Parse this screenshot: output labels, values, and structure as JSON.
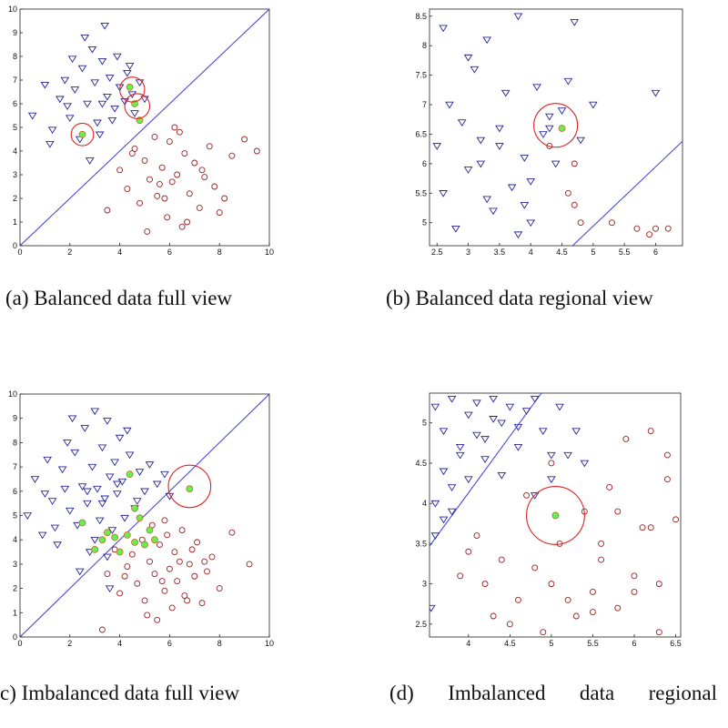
{
  "chart_data": [
    {
      "type": "scatter",
      "caption": "(a) Balanced data full view",
      "xlim": [
        0,
        10
      ],
      "ylim": [
        0,
        10
      ],
      "xticks": [
        0,
        2,
        4,
        6,
        8,
        10
      ],
      "yticks": [
        0,
        1,
        2,
        3,
        4,
        5,
        6,
        7,
        8,
        9,
        10
      ],
      "series": [
        {
          "marker": "line",
          "color": "#3a3adc",
          "x": [
            0,
            10
          ],
          "y": [
            0,
            10
          ]
        },
        {
          "marker": "triangle",
          "color": "#26269a",
          "x": [
            0.5,
            1.0,
            1.3,
            1.6,
            1.8,
            2.0,
            2.2,
            2.4,
            2.5,
            2.7,
            2.9,
            3.0,
            3.1,
            3.3,
            3.4,
            3.5,
            3.6,
            3.8,
            3.9,
            4.0,
            4.2,
            4.3,
            4.5,
            4.6,
            4.8,
            5.0,
            1.2,
            2.1,
            2.8,
            3.2,
            3.7,
            2.6,
            1.9,
            3.3,
            4.4
          ],
          "y": [
            5.5,
            6.8,
            4.9,
            6.2,
            7.0,
            5.4,
            6.6,
            4.5,
            7.5,
            6.0,
            8.3,
            6.9,
            5.2,
            7.8,
            9.3,
            6.3,
            7.1,
            5.8,
            8.0,
            6.7,
            6.1,
            7.3,
            6.4,
            5.6,
            6.9,
            6.2,
            4.3,
            7.9,
            3.6,
            4.7,
            5.3,
            8.8,
            5.9,
            6.0,
            7.6
          ]
        },
        {
          "marker": "circle",
          "color": "#9c1f1f",
          "x": [
            3.5,
            4.0,
            4.3,
            4.6,
            4.8,
            5.0,
            5.2,
            5.4,
            5.5,
            5.7,
            5.9,
            6.0,
            6.1,
            6.3,
            6.5,
            6.6,
            6.8,
            7.0,
            7.2,
            7.4,
            7.6,
            7.8,
            8.0,
            8.5,
            9.0,
            9.5,
            5.1,
            5.8,
            6.2,
            6.7,
            4.5,
            7.3,
            6.4,
            5.6,
            8.2
          ],
          "y": [
            1.5,
            3.2,
            2.4,
            4.1,
            1.8,
            3.6,
            2.8,
            4.6,
            2.1,
            3.3,
            1.2,
            4.4,
            2.7,
            3.0,
            0.8,
            3.9,
            2.2,
            3.5,
            1.6,
            2.9,
            4.2,
            2.5,
            1.4,
            3.8,
            4.5,
            4.0,
            0.6,
            2.0,
            5.0,
            1.0,
            3.9,
            3.2,
            4.8,
            2.6,
            2.0
          ]
        },
        {
          "marker": "dot",
          "color": "#66ee55",
          "x": [
            4.4,
            4.6,
            4.8,
            2.5
          ],
          "y": [
            6.7,
            6.0,
            5.3,
            4.7
          ]
        }
      ],
      "circles": {
        "color": "#e02020",
        "x": [
          4.5,
          4.7,
          2.5
        ],
        "y": [
          6.6,
          5.9,
          4.7
        ],
        "r": [
          0.5,
          0.5,
          0.45
        ]
      }
    },
    {
      "type": "scatter",
      "caption": "(b) Balanced data regional view",
      "xlim": [
        2.38,
        6.43
      ],
      "ylim": [
        4.61,
        8.62
      ],
      "xticks": [
        2.5,
        3,
        3.5,
        4,
        4.5,
        5,
        5.5,
        6
      ],
      "yticks": [
        5,
        5.5,
        6,
        6.5,
        7,
        7.5,
        8,
        8.5
      ],
      "series": [
        {
          "marker": "line",
          "color": "#3a3adc",
          "x": [
            4.67,
            6.43
          ],
          "y": [
            4.61,
            6.38
          ]
        },
        {
          "marker": "triangle",
          "color": "#26269a",
          "x": [
            2.5,
            2.6,
            2.7,
            2.9,
            3.0,
            3.1,
            3.2,
            3.3,
            3.4,
            3.5,
            3.6,
            3.7,
            3.8,
            3.9,
            4.0,
            4.1,
            4.2,
            4.3,
            4.4,
            4.5,
            4.6,
            2.8,
            3.0,
            3.3,
            3.5,
            3.8,
            4.0,
            4.3,
            4.7,
            4.8,
            5.0,
            6.0,
            3.2,
            2.6,
            3.9
          ],
          "y": [
            6.3,
            5.5,
            7.0,
            6.7,
            5.9,
            7.6,
            6.4,
            8.1,
            5.2,
            6.6,
            7.2,
            5.6,
            8.5,
            6.1,
            5.0,
            7.3,
            6.5,
            6.8,
            6.0,
            6.9,
            7.4,
            4.9,
            7.8,
            5.4,
            6.3,
            4.8,
            5.7,
            6.6,
            8.4,
            6.4,
            7.0,
            7.2,
            6.0,
            8.3,
            5.3
          ]
        },
        {
          "marker": "circle",
          "color": "#9c1f1f",
          "x": [
            4.7,
            4.7,
            4.8,
            5.3,
            5.7,
            5.9,
            6.0,
            6.2,
            4.6,
            4.3
          ],
          "y": [
            6.0,
            5.3,
            5.0,
            5.0,
            4.9,
            4.8,
            4.9,
            4.9,
            5.5,
            6.3
          ]
        },
        {
          "marker": "dot",
          "color": "#66ee55",
          "x": [
            4.5
          ],
          "y": [
            6.6
          ]
        }
      ],
      "circles": {
        "color": "#e02020",
        "x": [
          4.4
        ],
        "y": [
          6.65
        ],
        "r": [
          0.35
        ]
      }
    },
    {
      "type": "scatter",
      "caption": "c) Imbalanced data full view",
      "xlim": [
        0,
        10
      ],
      "ylim": [
        0,
        10
      ],
      "xticks": [
        0,
        2,
        4,
        6,
        8,
        10
      ],
      "yticks": [
        0,
        1,
        2,
        3,
        4,
        5,
        6,
        7,
        8,
        9,
        10
      ],
      "series": [
        {
          "marker": "line",
          "color": "#3a3adc",
          "x": [
            0,
            10
          ],
          "y": [
            0,
            10
          ]
        },
        {
          "marker": "triangle",
          "color": "#26269a",
          "x": [
            0.3,
            0.6,
            0.9,
            1.1,
            1.3,
            1.5,
            1.7,
            1.9,
            2.0,
            2.2,
            2.3,
            2.5,
            2.6,
            2.7,
            2.8,
            2.9,
            3.0,
            3.1,
            3.2,
            3.3,
            3.4,
            3.5,
            3.6,
            3.7,
            3.8,
            3.9,
            4.0,
            4.1,
            4.2,
            4.4,
            4.6,
            4.8,
            5.0,
            5.2,
            5.5,
            5.8,
            6.0,
            1.0,
            1.8,
            2.4,
            3.0,
            3.5,
            4.3,
            2.1,
            2.7,
            3.3,
            3.9,
            1.4,
            4.7,
            3.6
          ],
          "y": [
            5.0,
            6.5,
            4.2,
            7.3,
            5.6,
            3.8,
            6.9,
            8.0,
            5.2,
            7.6,
            4.6,
            6.2,
            8.6,
            5.5,
            3.5,
            7.0,
            9.3,
            6.1,
            4.8,
            7.8,
            5.7,
            8.9,
            6.6,
            4.4,
            7.2,
            5.9,
            8.2,
            6.4,
            4.9,
            7.5,
            5.3,
            6.8,
            6.0,
            7.1,
            6.3,
            6.7,
            5.8,
            5.9,
            6.1,
            2.7,
            4.0,
            3.3,
            8.5,
            9.0,
            6.0,
            5.5,
            6.3,
            4.5,
            5.6,
            2.0
          ]
        },
        {
          "marker": "circle",
          "color": "#9c1f1f",
          "x": [
            3.3,
            3.8,
            4.0,
            4.3,
            4.5,
            4.7,
            4.9,
            5.0,
            5.2,
            5.4,
            5.5,
            5.6,
            5.8,
            5.9,
            6.0,
            6.1,
            6.2,
            6.3,
            6.5,
            6.6,
            6.8,
            7.0,
            7.1,
            7.3,
            7.5,
            7.7,
            8.0,
            8.5,
            9.2,
            4.6,
            5.3,
            5.7,
            6.4,
            6.9,
            4.2,
            5.1,
            6.7,
            7.4,
            3.5,
            5.8
          ],
          "y": [
            0.3,
            3.6,
            1.8,
            2.9,
            3.4,
            2.2,
            4.0,
            1.5,
            3.1,
            2.6,
            0.7,
            3.8,
            1.9,
            4.2,
            2.8,
            1.2,
            3.5,
            2.3,
            4.4,
            1.7,
            3.0,
            2.5,
            3.9,
            1.4,
            2.7,
            3.3,
            2.0,
            4.3,
            3.0,
            3.9,
            4.6,
            2.3,
            3.1,
            3.6,
            2.5,
            0.9,
            1.5,
            3.1,
            2.6,
            4.8
          ]
        },
        {
          "marker": "dot",
          "color": "#66ee55",
          "x": [
            2.5,
            3.0,
            3.3,
            3.5,
            3.8,
            4.0,
            4.3,
            4.6,
            4.8,
            5.0,
            5.2,
            5.4,
            4.4,
            6.8,
            4.6
          ],
          "y": [
            4.7,
            3.6,
            4.0,
            4.3,
            4.1,
            3.5,
            4.2,
            3.9,
            4.9,
            3.8,
            4.4,
            4.0,
            6.7,
            6.1,
            5.3
          ]
        }
      ],
      "circles": {
        "color": "#e02020",
        "x": [
          6.8
        ],
        "y": [
          6.2
        ],
        "r": [
          0.85
        ]
      }
    },
    {
      "type": "scatter",
      "caption": "(d) Imbalanced data regional",
      "xlim": [
        3.53,
        6.56
      ],
      "ylim": [
        2.34,
        5.37
      ],
      "xticks": [
        4,
        4.5,
        5,
        5.5,
        6,
        6.5
      ],
      "yticks": [
        2.5,
        3,
        3.5,
        4,
        4.5,
        5
      ],
      "series": [
        {
          "marker": "line",
          "color": "#3a3adc",
          "x": [
            3.53,
            4.88
          ],
          "y": [
            3.47,
            5.37
          ]
        },
        {
          "marker": "triangle",
          "color": "#26269a",
          "x": [
            3.6,
            3.7,
            3.8,
            3.9,
            4.0,
            4.1,
            4.2,
            4.3,
            4.4,
            4.5,
            4.6,
            4.7,
            4.8,
            4.9,
            5.0,
            5.1,
            5.2,
            5.3,
            3.6,
            3.7,
            3.8,
            3.9,
            4.0,
            4.2,
            4.4,
            3.6,
            3.8,
            4.1,
            4.3,
            3.7,
            4.6,
            5.4,
            3.55,
            4.8,
            5.0
          ],
          "y": [
            5.2,
            4.9,
            5.3,
            4.6,
            5.1,
            5.25,
            4.8,
            5.3,
            5.0,
            5.2,
            4.7,
            5.15,
            5.3,
            4.9,
            4.6,
            5.2,
            4.6,
            4.9,
            4.0,
            4.4,
            3.9,
            4.7,
            4.3,
            4.55,
            4.35,
            3.6,
            4.2,
            4.85,
            5.05,
            3.8,
            4.95,
            4.5,
            2.7,
            4.1,
            4.3
          ]
        },
        {
          "marker": "circle",
          "color": "#9c1f1f",
          "x": [
            3.9,
            4.1,
            4.3,
            4.5,
            4.6,
            4.8,
            4.9,
            5.0,
            5.1,
            5.3,
            5.4,
            5.5,
            5.6,
            5.7,
            5.8,
            5.9,
            6.0,
            6.1,
            6.2,
            6.3,
            6.4,
            6.5,
            4.2,
            4.7,
            5.2,
            5.6,
            6.0,
            6.4,
            4.4,
            5.5,
            6.2,
            5.8,
            4.0,
            6.3,
            5.0
          ],
          "y": [
            3.1,
            3.6,
            2.6,
            2.5,
            2.8,
            3.2,
            2.4,
            3.0,
            3.5,
            2.6,
            3.9,
            2.9,
            3.3,
            4.2,
            2.7,
            4.8,
            3.1,
            3.7,
            4.9,
            2.4,
            4.6,
            3.8,
            3.0,
            4.1,
            2.8,
            3.5,
            2.9,
            4.3,
            3.3,
            2.65,
            3.7,
            3.9,
            3.4,
            3.0,
            4.5
          ]
        },
        {
          "marker": "dot",
          "color": "#66ee55",
          "x": [
            5.05
          ],
          "y": [
            3.85
          ]
        }
      ],
      "circles": {
        "color": "#e02020",
        "x": [
          5.05
        ],
        "y": [
          3.85
        ],
        "r": [
          0.35
        ]
      }
    }
  ]
}
